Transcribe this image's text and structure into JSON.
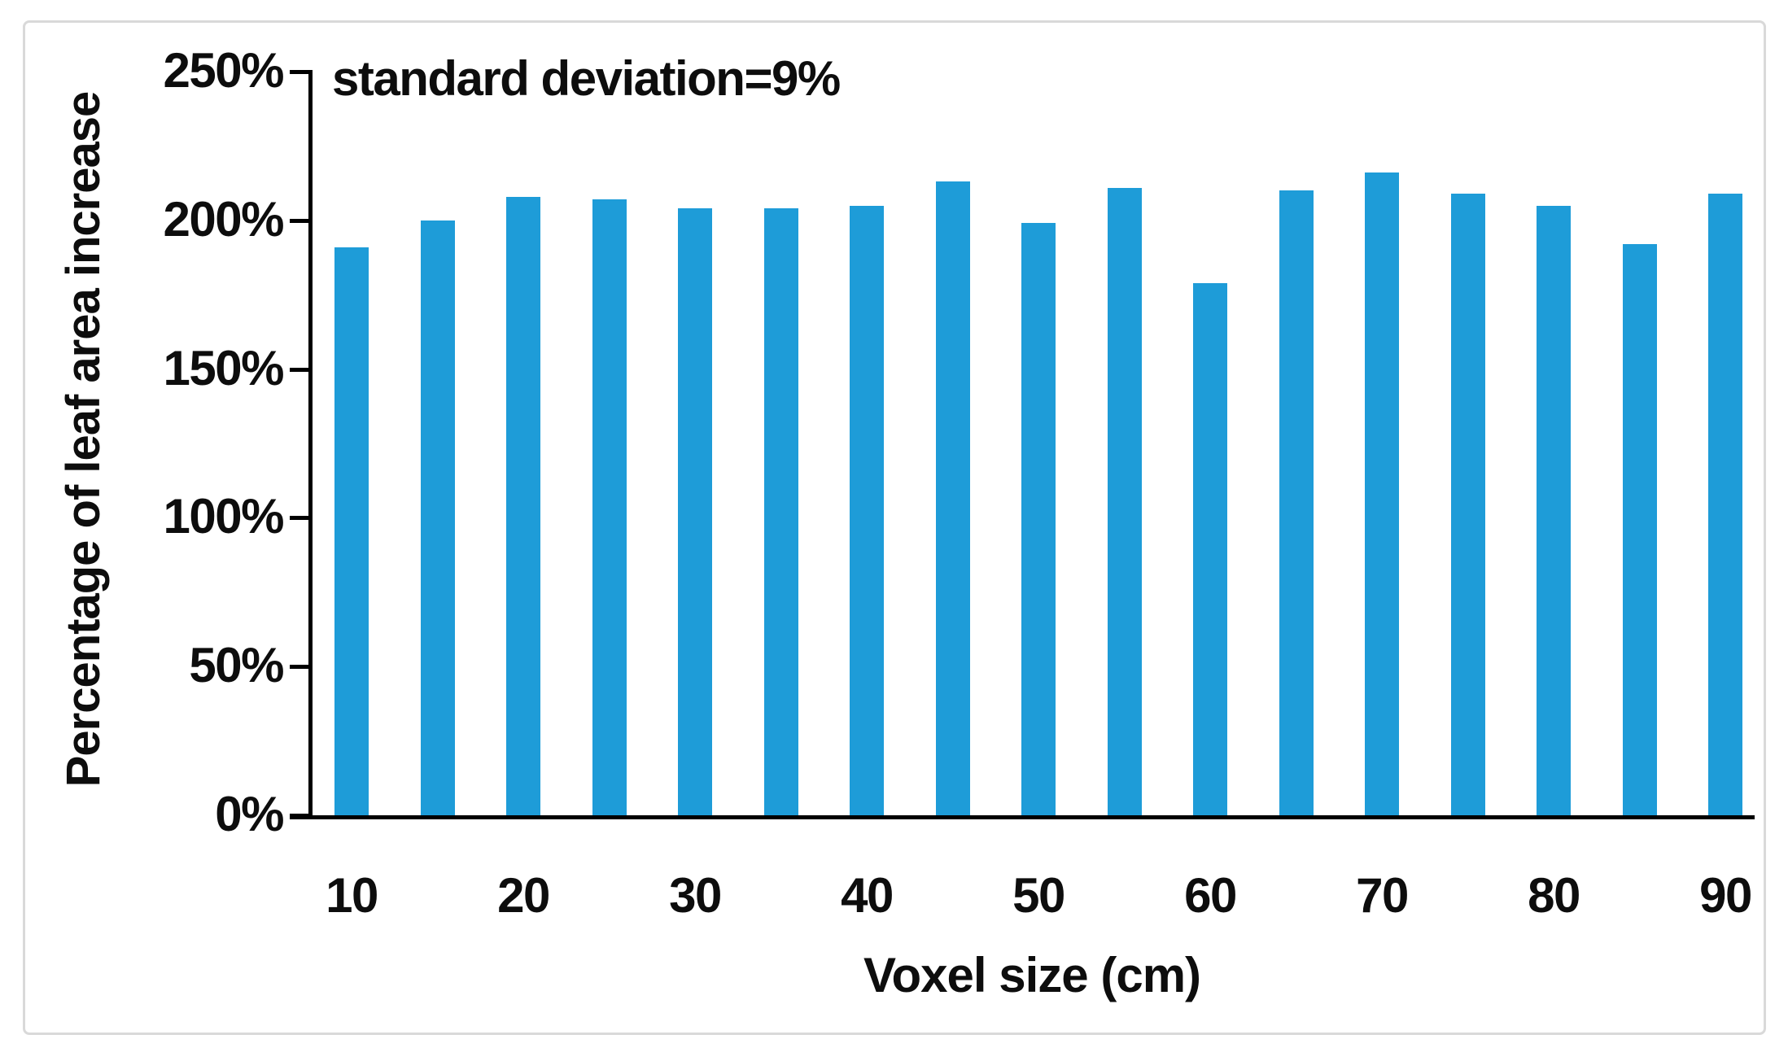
{
  "chart_data": {
    "type": "bar",
    "annotation": "standard deviation=9%",
    "xlabel": "Voxel size (cm)",
    "ylabel": "Percentage of leaf area increase",
    "categories": [
      10,
      15,
      20,
      25,
      30,
      35,
      40,
      45,
      50,
      55,
      60,
      65,
      70,
      75,
      80,
      85,
      90
    ],
    "values": [
      191,
      200,
      208,
      207,
      204,
      204,
      205,
      213,
      199,
      211,
      179,
      210,
      216,
      209,
      205,
      192,
      209
    ],
    "value_unit": "%",
    "ylim": [
      0,
      250
    ],
    "ytick_step": 50,
    "ytick_labels": [
      "0%",
      "50%",
      "100%",
      "150%",
      "200%",
      "250%"
    ],
    "xtick_labels_shown": [
      "10",
      "20",
      "30",
      "40",
      "50",
      "60",
      "70",
      "80",
      "90"
    ],
    "bar_color": "#1e9cd8",
    "axis_color": "#000000",
    "text_color": "#0d0d0d",
    "frame_border_color": "#d9d9d9",
    "grid": false,
    "legend": "none"
  }
}
